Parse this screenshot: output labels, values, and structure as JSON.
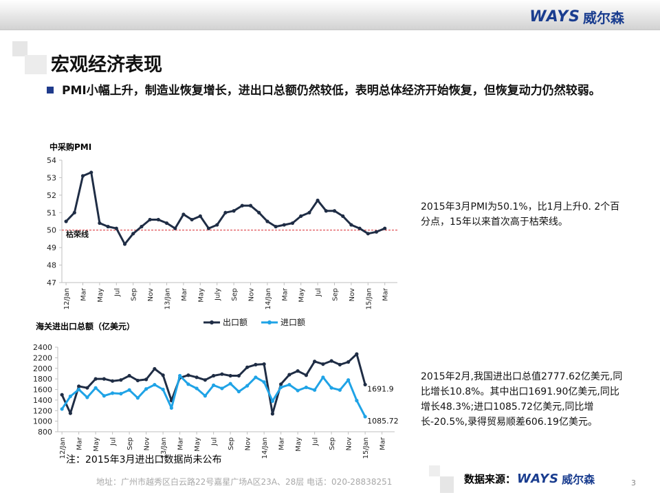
{
  "header": {
    "logo_en": "WAYS",
    "logo_cn": "威尔森"
  },
  "page_title": "宏观经济表现",
  "summary": "PMI小幅上升，制造业恢复增长，进出口总额仍然较低，表明总体经济开始恢复，但恢复动力仍然较弱。",
  "chart_data": [
    {
      "type": "line",
      "title": "中采购PMI",
      "xlabel": "",
      "ylabel": "",
      "ylim": [
        47,
        54
      ],
      "yticks": [
        "47",
        "48",
        "49",
        "50",
        "51",
        "52",
        "53",
        "54"
      ],
      "x_tick_labels": [
        "12/Jan",
        "Mar",
        "May",
        "Jul",
        "Sep",
        "Nov",
        "13/Jan",
        "Mar",
        "May",
        "July",
        "Sep",
        "Nov",
        "14/Jan",
        "Mar",
        "May",
        "Jul",
        "Sep",
        "Nov",
        "15/Jan",
        "Mar"
      ],
      "reference_line": {
        "value": 50,
        "label": "枯荣线",
        "color": "#d9262c"
      },
      "legend": "none",
      "series": [
        {
          "color": "#1f2d45",
          "values": [
            50.5,
            51.0,
            53.1,
            53.3,
            50.4,
            50.2,
            50.1,
            49.2,
            49.8,
            50.2,
            50.6,
            50.6,
            50.4,
            50.1,
            50.9,
            50.6,
            50.8,
            50.1,
            50.3,
            51.0,
            51.1,
            51.4,
            51.4,
            51.0,
            50.5,
            50.2,
            50.3,
            50.4,
            50.8,
            51.0,
            51.7,
            51.1,
            51.1,
            50.8,
            50.3,
            50.1,
            49.8,
            49.9,
            50.1
          ]
        }
      ]
    },
    {
      "type": "line",
      "title": "海关进出口总额（亿美元）",
      "xlabel": "",
      "ylabel": "",
      "ylim": [
        800,
        2400
      ],
      "yticks": [
        "800",
        "1000",
        "1200",
        "1400",
        "1600",
        "1800",
        "2000",
        "2200",
        "2400"
      ],
      "x_tick_labels": [
        "12/Jan",
        "Mar",
        "May",
        "Jul",
        "Sep",
        "Nov",
        "13/Jan",
        "Mar",
        "May",
        "Jul",
        "Sep",
        "Nov",
        "14/Jan",
        "Mar",
        "May",
        "Jul",
        "Sep",
        "Nov",
        "15/Jan",
        "Mar"
      ],
      "legend": "top",
      "series": [
        {
          "name": "出口额",
          "color": "#1f2d45",
          "end_label": "1691.9",
          "values": [
            1500,
            1150,
            1660,
            1630,
            1800,
            1800,
            1760,
            1780,
            1860,
            1770,
            1790,
            1990,
            1870,
            1390,
            1820,
            1870,
            1830,
            1780,
            1860,
            1890,
            1860,
            1860,
            2020,
            2070,
            2080,
            1140,
            1700,
            1880,
            1950,
            1870,
            2130,
            2080,
            2140,
            2070,
            2120,
            2270,
            1691.9
          ]
        },
        {
          "name": "进口额",
          "color": "#1fa3e6",
          "end_label": "1085.72",
          "values": [
            1230,
            1470,
            1600,
            1450,
            1630,
            1480,
            1530,
            1520,
            1590,
            1440,
            1610,
            1690,
            1600,
            1250,
            1860,
            1700,
            1620,
            1480,
            1680,
            1620,
            1710,
            1560,
            1670,
            1830,
            1740,
            1380,
            1640,
            1690,
            1580,
            1640,
            1590,
            1830,
            1630,
            1590,
            1780,
            1390,
            1085.72
          ]
        }
      ]
    }
  ],
  "notes": {
    "pmi": "2015年3月PMI为50.1%，比1月上升0. 2个百分点，15年以来首次高于枯荣线。",
    "trade": "2015年2月,我国进出口总值2777.62亿美元,同比增长10.8%。其中出口1691.90亿美元,同比增长48.3%;进口1085.72亿美元,同比增长-20.5%,录得贸易顺差606.19亿美元。"
  },
  "footnote": "注：2015年3月进出口数据尚未公布",
  "footer": {
    "address": "地址：广州市越秀区白云路22号嘉星广场A区23A、28层    电话：020-28838251",
    "source_label": "数据来源：",
    "source_logo_en": "WAYS",
    "source_logo_cn": "威尔森",
    "page_number": "3"
  }
}
